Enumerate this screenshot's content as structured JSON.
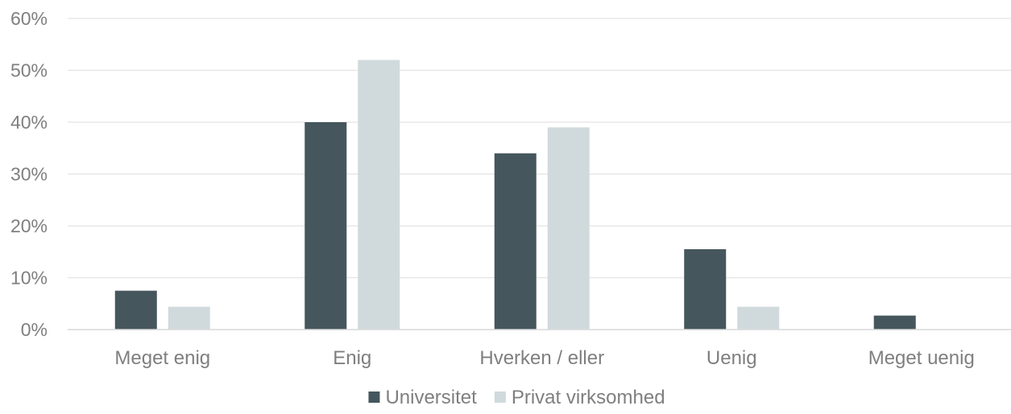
{
  "chart_data": {
    "type": "bar",
    "categories": [
      "Meget enig",
      "Enig",
      "Hverken / eller",
      "Uenig",
      "Meget uenig"
    ],
    "series": [
      {
        "name": "Universitet",
        "values": [
          7.5,
          40,
          34,
          15.5,
          2.7
        ],
        "color": "#45575d"
      },
      {
        "name": "Privat virksomhed",
        "values": [
          4.4,
          52,
          39,
          4.4,
          0
        ],
        "color": "#d0dadd"
      }
    ],
    "y_ticks": [
      "0%",
      "10%",
      "20%",
      "30%",
      "40%",
      "50%",
      "60%"
    ],
    "ylim": [
      0,
      60
    ],
    "grid": true,
    "legend_position": "bottom-center",
    "gridline_color": "#e3e3e3",
    "axis_color": "#d9d9d9"
  }
}
